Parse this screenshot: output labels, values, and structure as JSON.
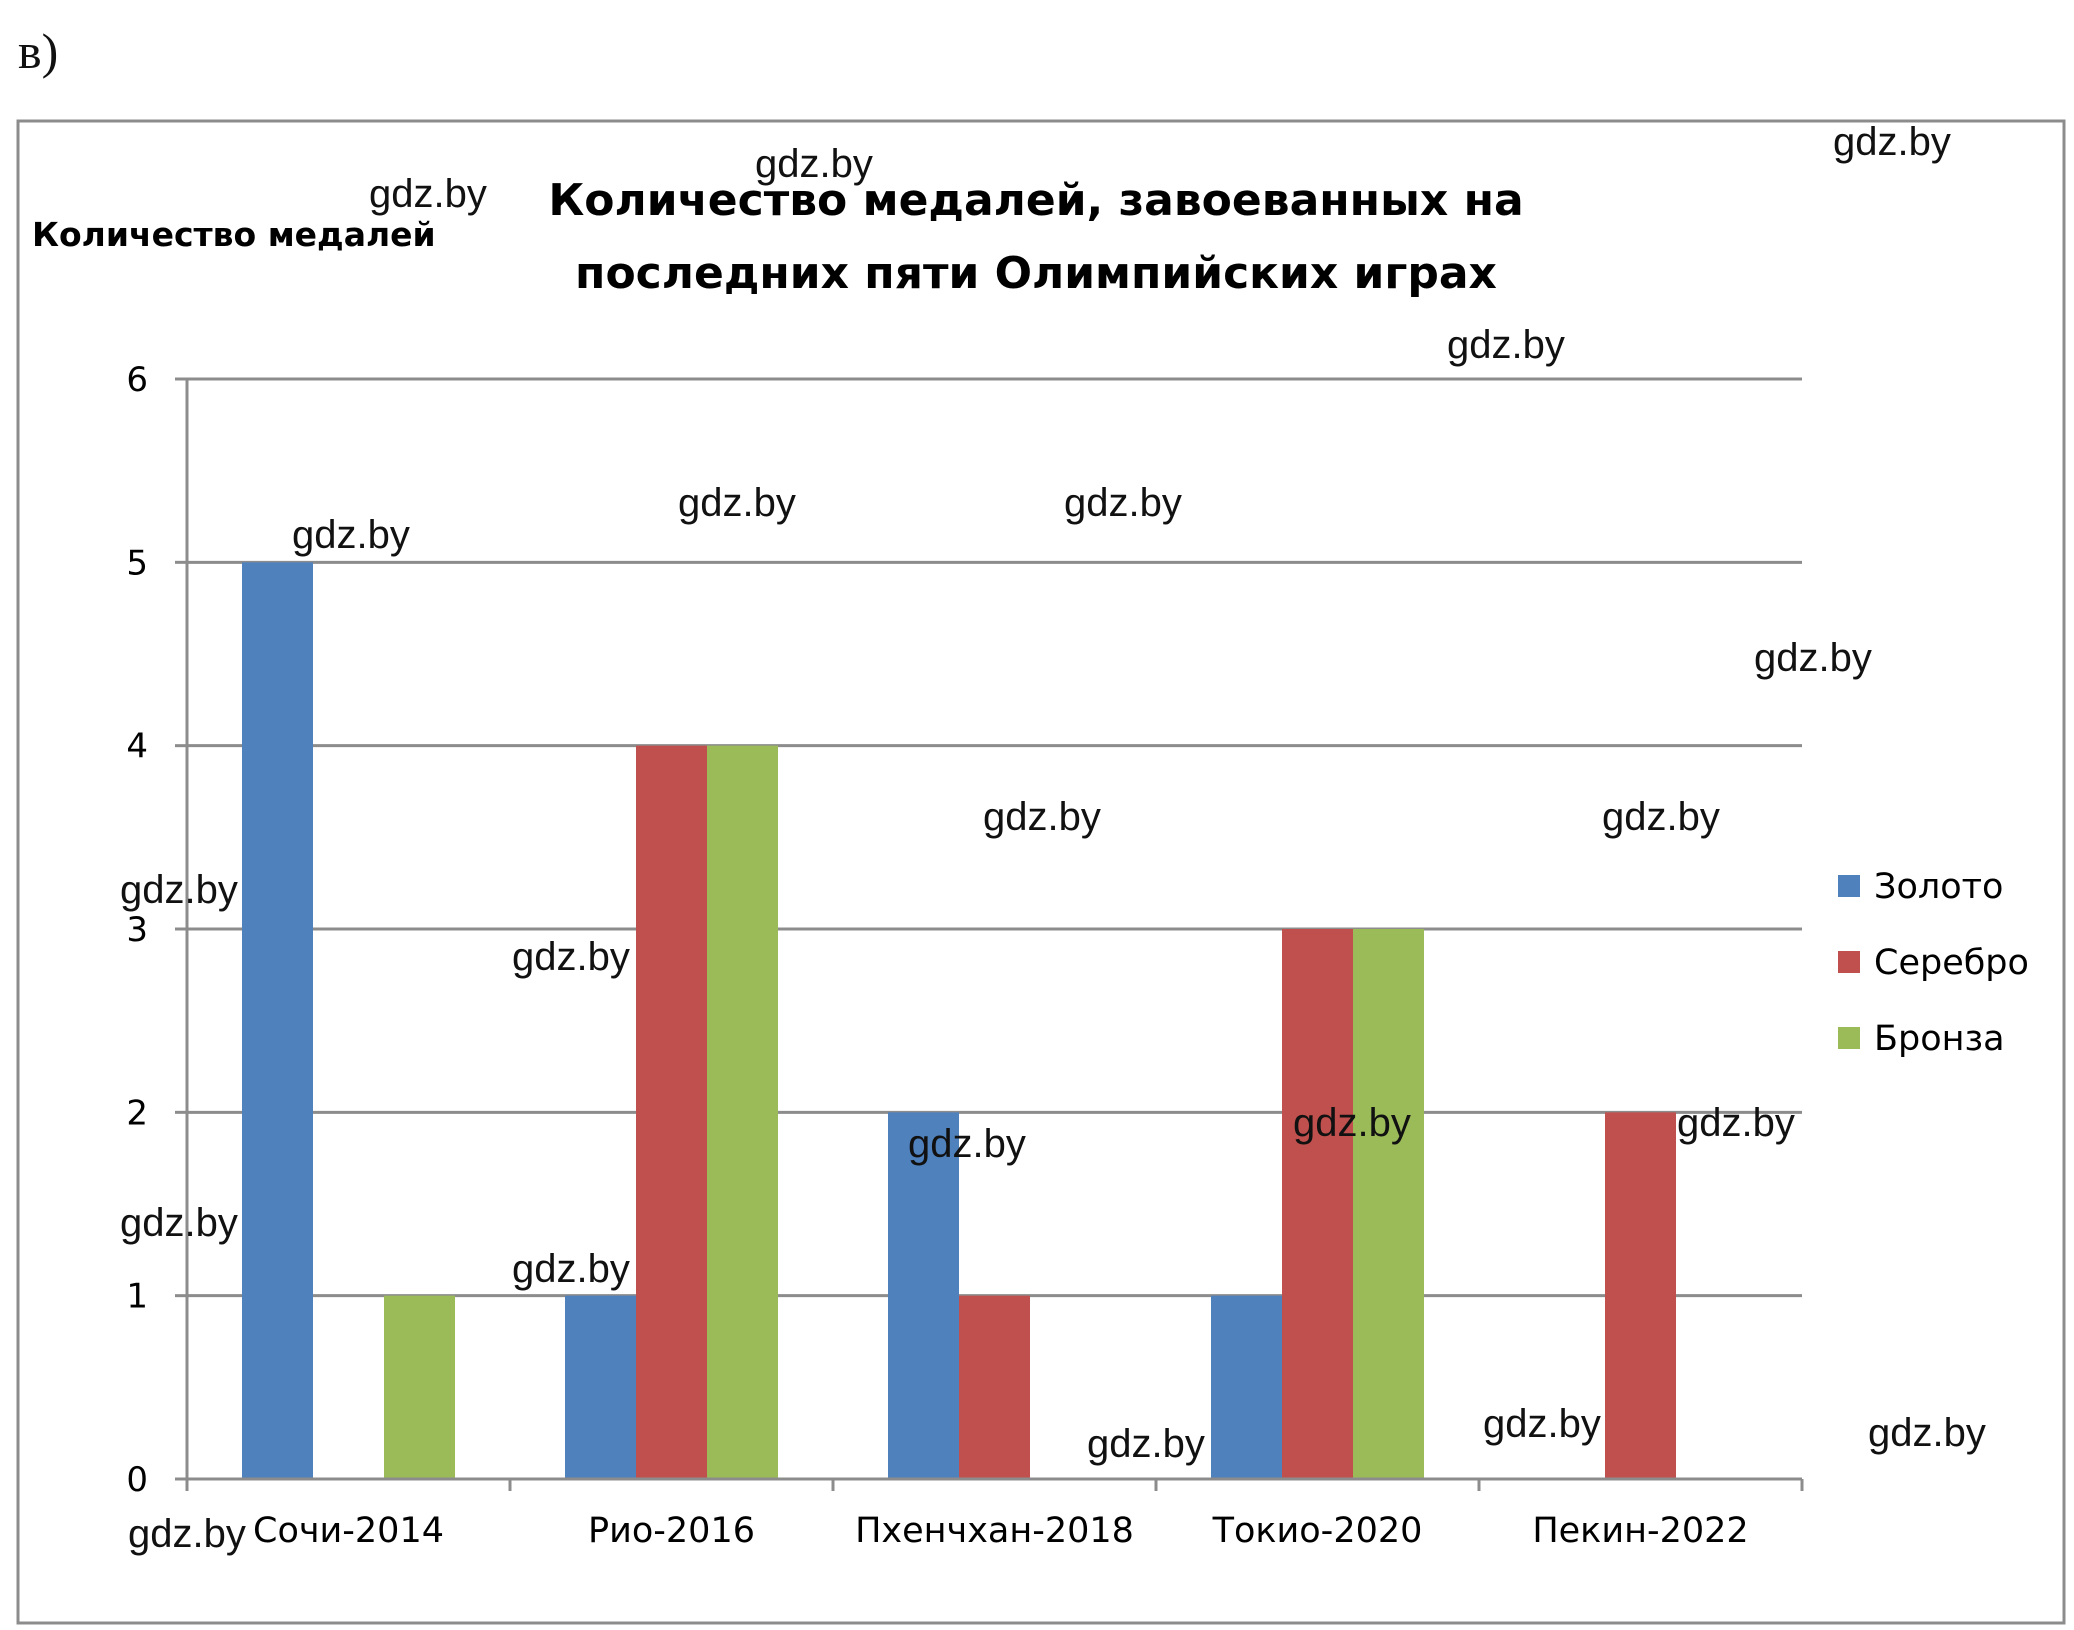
{
  "label_prefix": "в)",
  "chart_data": {
    "type": "bar",
    "title": "Количество медалей, завоеванных на последних пяти Олимпийских играх",
    "title_lines": [
      "Количество медалей, завоеванных на",
      "последних пяти Олимпийских играх"
    ],
    "ylabel": "Количество медалей",
    "xlabel": "",
    "ylim": [
      0,
      6
    ],
    "yticks": [
      0,
      1,
      2,
      3,
      4,
      5,
      6
    ],
    "grid": true,
    "legend_position": "right",
    "categories": [
      "Сочи-2014",
      "Рио-2016",
      "Пхенчхан-2018",
      "Токио-2020",
      "Пекин-2022"
    ],
    "series": [
      {
        "name": "Золото",
        "color": "#4f81bd",
        "values": [
          5,
          1,
          2,
          1,
          0
        ]
      },
      {
        "name": "Серебро",
        "color": "#c0504d",
        "values": [
          0,
          4,
          1,
          3,
          2
        ]
      },
      {
        "name": "Бронза",
        "color": "#9bbb59",
        "values": [
          1,
          4,
          0,
          3,
          0
        ]
      }
    ]
  },
  "watermark": "gdz.by"
}
